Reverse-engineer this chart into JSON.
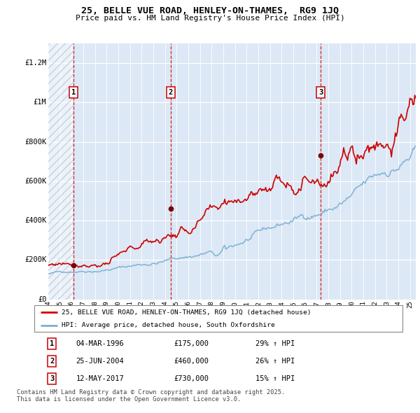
{
  "title1": "25, BELLE VUE ROAD, HENLEY-ON-THAMES,  RG9 1JQ",
  "title2": "Price paid vs. HM Land Registry's House Price Index (HPI)",
  "hpi_color": "#7bafd4",
  "price_color": "#cc0000",
  "plot_bg": "#dce8f5",
  "ylim": [
    0,
    1300000
  ],
  "yticks": [
    0,
    200000,
    400000,
    600000,
    800000,
    1000000,
    1200000
  ],
  "ytick_labels": [
    "£0",
    "£200K",
    "£400K",
    "£600K",
    "£800K",
    "£1M",
    "£1.2M"
  ],
  "sale_dates": [
    1996.17,
    2004.48,
    2017.36
  ],
  "sale_prices": [
    175000,
    460000,
    730000
  ],
  "sale_labels": [
    "1",
    "2",
    "3"
  ],
  "legend_line1": "25, BELLE VUE ROAD, HENLEY-ON-THAMES, RG9 1JQ (detached house)",
  "legend_line2": "HPI: Average price, detached house, South Oxfordshire",
  "table_data": [
    [
      "1",
      "04-MAR-1996",
      "£175,000",
      "29% ↑ HPI"
    ],
    [
      "2",
      "25-JUN-2004",
      "£460,000",
      "26% ↑ HPI"
    ],
    [
      "3",
      "12-MAY-2017",
      "£730,000",
      "15% ↑ HPI"
    ]
  ],
  "footer": "Contains HM Land Registry data © Crown copyright and database right 2025.\nThis data is licensed under the Open Government Licence v3.0.",
  "xstart": 1994.0,
  "xend": 2025.5
}
